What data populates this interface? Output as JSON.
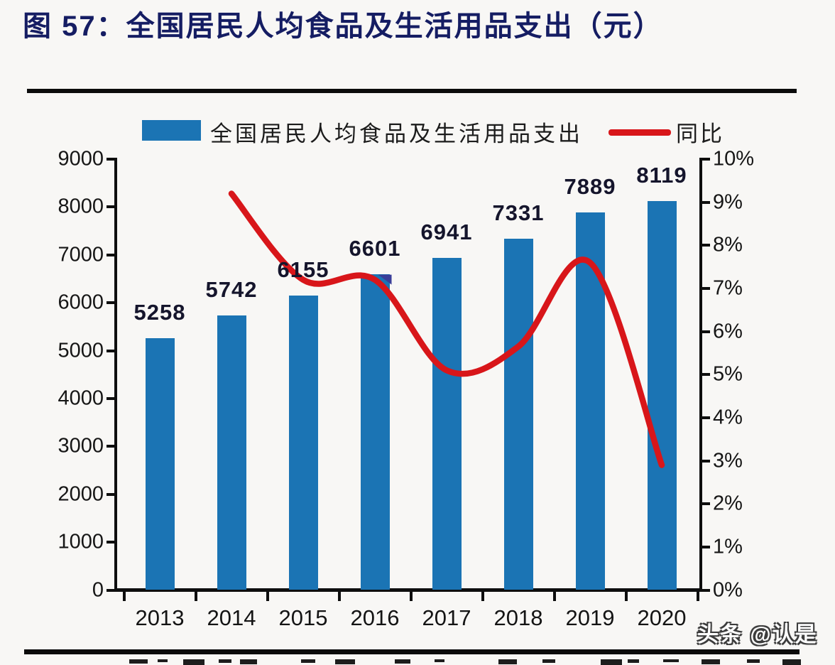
{
  "page": {
    "title": "图 57：全国居民人均食品及生活用品支出（元）",
    "watermark": "头条 @认是"
  },
  "legend": {
    "bar_label": "全国居民人均食品及生活用品支出",
    "line_label": "同比"
  },
  "chart_data": {
    "type": "bar",
    "title": "全国居民人均食品及生活用品支出（元）",
    "categories": [
      "2013",
      "2014",
      "2015",
      "2016",
      "2017",
      "2018",
      "2019",
      "2020"
    ],
    "series": [
      {
        "name": "全国居民人均食品及生活用品支出",
        "type": "bar",
        "axis": "left",
        "color": "#1b74b4",
        "values": [
          5258,
          5742,
          6155,
          6601,
          6941,
          7331,
          7889,
          8119
        ]
      },
      {
        "name": "同比",
        "type": "line",
        "axis": "right",
        "color": "#d8161a",
        "values": [
          null,
          9.2,
          7.2,
          7.2,
          5.1,
          5.65,
          7.6,
          2.9
        ]
      }
    ],
    "left_axis": {
      "min": 0,
      "max": 9000,
      "step": 1000,
      "suffix": ""
    },
    "right_axis": {
      "min": 0,
      "max": 10,
      "step": 1,
      "suffix": "%"
    },
    "legend_position": "top",
    "grid": false,
    "data_labels": true
  }
}
